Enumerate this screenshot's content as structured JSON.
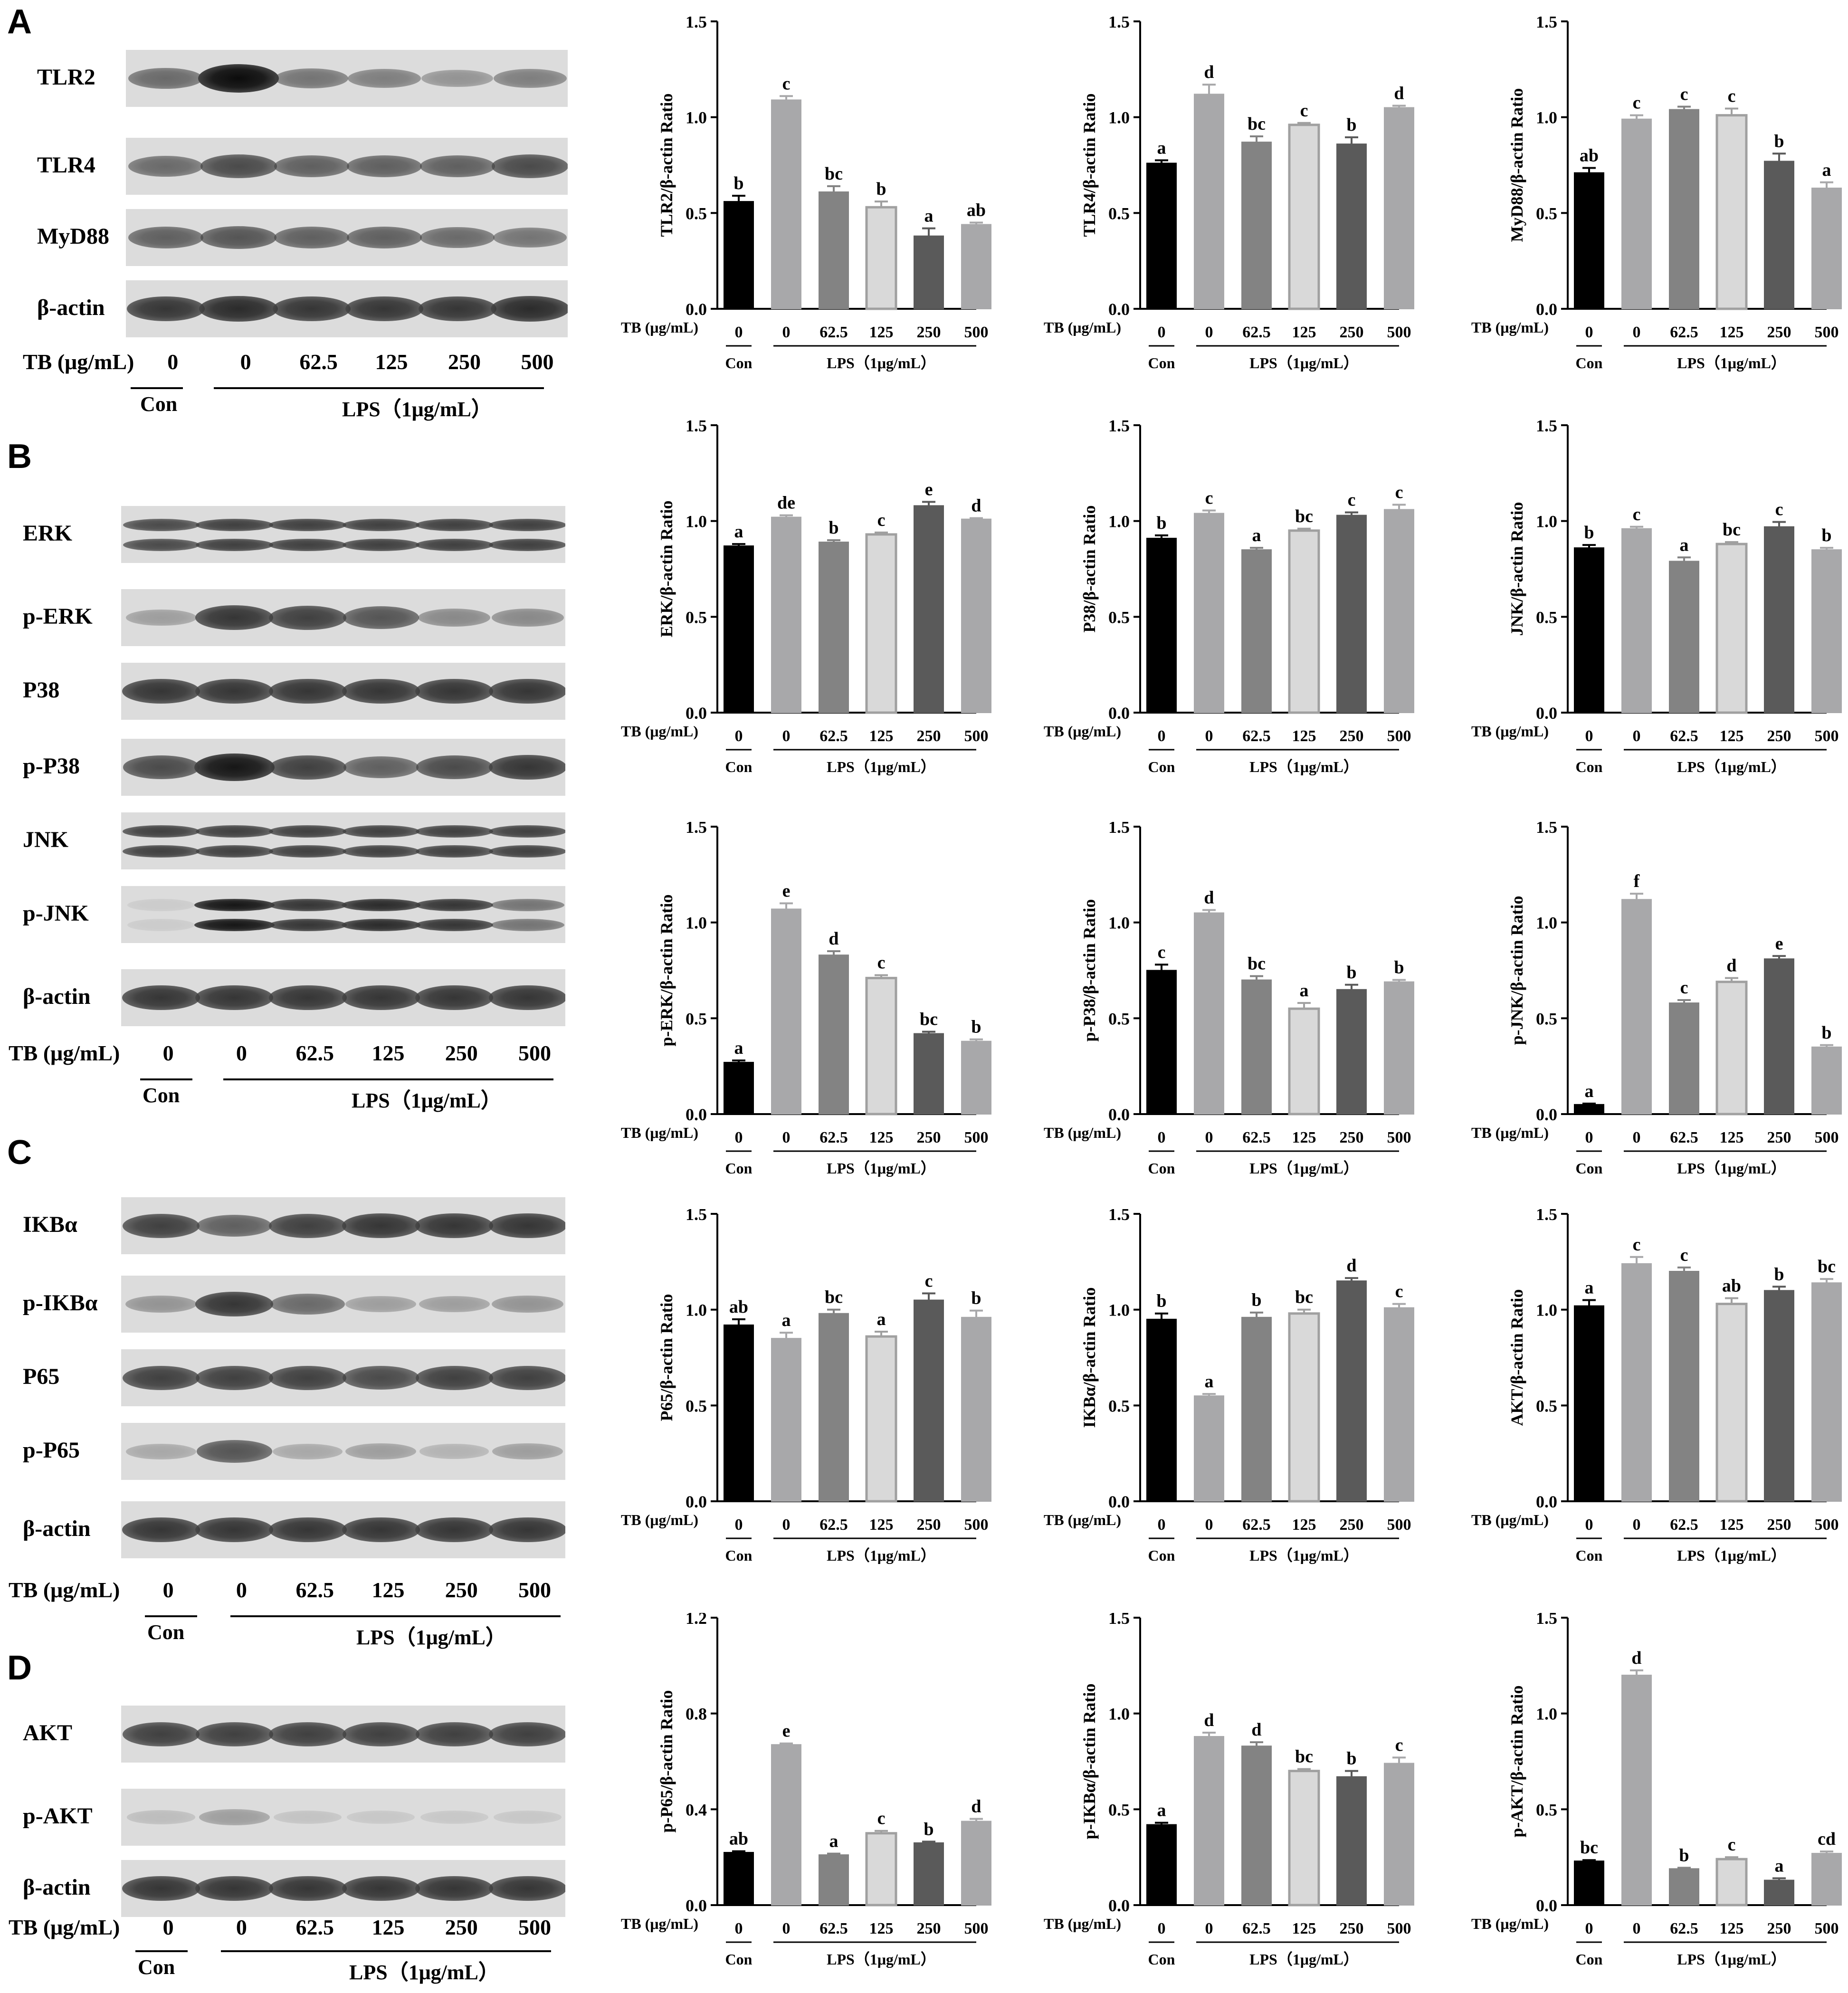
{
  "colors": {
    "bar_fills": [
      "#000000",
      "#a8a8aa",
      "#838383",
      "#d9d9d9",
      "#5a5a5a",
      "#a8a8aa"
    ],
    "bar_strokes": [
      "#000000",
      "#a8a8aa",
      "#838383",
      "#a0a0a0",
      "#5a5a5a",
      "#a8a8aa"
    ]
  },
  "panels": [
    {
      "letter": "A",
      "blots": [
        {
          "label": "TLR2",
          "intensity": [
            0.55,
            1.0,
            0.5,
            0.45,
            0.35,
            0.45
          ],
          "doublet": false
        },
        {
          "label": "TLR4",
          "intensity": [
            0.55,
            0.7,
            0.6,
            0.6,
            0.6,
            0.7
          ],
          "doublet": false
        },
        {
          "label": "MyD88",
          "intensity": [
            0.6,
            0.65,
            0.6,
            0.6,
            0.55,
            0.5
          ],
          "doublet": false
        },
        {
          "label": "β-actin",
          "intensity": [
            0.8,
            0.85,
            0.8,
            0.8,
            0.8,
            0.85
          ],
          "doublet": false
        }
      ],
      "tb_label": "TB (μg/mL)",
      "lanes": [
        "0",
        "0",
        "62.5",
        "125",
        "250",
        "500"
      ],
      "con_label": "Con",
      "lps_label": "LPS（1μg/mL）"
    },
    {
      "letter": "B",
      "blots": [
        {
          "label": "ERK",
          "intensity": [
            0.7,
            0.75,
            0.75,
            0.75,
            0.75,
            0.75
          ],
          "doublet": true
        },
        {
          "label": "p-ERK",
          "intensity": [
            0.3,
            0.8,
            0.75,
            0.65,
            0.4,
            0.4
          ],
          "doublet": false
        },
        {
          "label": "P38",
          "intensity": [
            0.8,
            0.8,
            0.8,
            0.8,
            0.8,
            0.8
          ],
          "doublet": false
        },
        {
          "label": "p-P38",
          "intensity": [
            0.7,
            0.95,
            0.75,
            0.6,
            0.7,
            0.8
          ],
          "doublet": false
        },
        {
          "label": "JNK",
          "intensity": [
            0.75,
            0.75,
            0.75,
            0.75,
            0.75,
            0.75
          ],
          "doublet": true
        },
        {
          "label": "p-JNK",
          "intensity": [
            0.05,
            0.95,
            0.8,
            0.85,
            0.8,
            0.5
          ],
          "doublet": true
        },
        {
          "label": "β-actin",
          "intensity": [
            0.8,
            0.8,
            0.8,
            0.8,
            0.8,
            0.8
          ],
          "doublet": false
        }
      ],
      "tb_label": "TB (μg/mL)",
      "lanes": [
        "0",
        "0",
        "62.5",
        "125",
        "250",
        "500"
      ],
      "con_label": "Con",
      "lps_label": "LPS（1μg/mL）"
    },
    {
      "letter": "C",
      "blots": [
        {
          "label": "IKBα",
          "intensity": [
            0.75,
            0.6,
            0.75,
            0.8,
            0.8,
            0.8
          ],
          "doublet": false
        },
        {
          "label": "p-IKBα",
          "intensity": [
            0.35,
            0.8,
            0.55,
            0.3,
            0.3,
            0.35
          ],
          "doublet": false
        },
        {
          "label": "P65",
          "intensity": [
            0.75,
            0.75,
            0.75,
            0.7,
            0.75,
            0.75
          ],
          "doublet": false
        },
        {
          "label": "p-P65",
          "intensity": [
            0.25,
            0.65,
            0.25,
            0.3,
            0.2,
            0.3
          ],
          "doublet": false
        },
        {
          "label": "β-actin",
          "intensity": [
            0.8,
            0.8,
            0.8,
            0.8,
            0.8,
            0.8
          ],
          "doublet": false
        }
      ],
      "tb_label": "TB (μg/mL)",
      "lanes": [
        "0",
        "0",
        "62.5",
        "125",
        "250",
        "500"
      ],
      "con_label": "Con",
      "lps_label": "LPS（1μg/mL）"
    },
    {
      "letter": "D",
      "blots": [
        {
          "label": "AKT",
          "intensity": [
            0.75,
            0.75,
            0.75,
            0.75,
            0.75,
            0.75
          ],
          "doublet": false
        },
        {
          "label": "p-AKT",
          "intensity": [
            0.15,
            0.3,
            0.12,
            0.1,
            0.1,
            0.1
          ],
          "doublet": false
        },
        {
          "label": "β-actin",
          "intensity": [
            0.8,
            0.8,
            0.8,
            0.8,
            0.8,
            0.8
          ],
          "doublet": false
        }
      ],
      "tb_label": "TB (μg/mL)",
      "lanes": [
        "0",
        "0",
        "62.5",
        "125",
        "250",
        "500"
      ],
      "con_label": "Con",
      "lps_label": "LPS（1μg/mL）"
    }
  ],
  "chart_data": [
    {
      "type": "bar",
      "ylabel": "TLR2/β-actin Ratio",
      "ylim": [
        0,
        1.5
      ],
      "yticks": [
        "0.0",
        "0.5",
        "1.0",
        "1.5"
      ],
      "categories": [
        "0",
        "0",
        "62.5",
        "125",
        "250",
        "500"
      ],
      "values": [
        0.56,
        1.09,
        0.61,
        0.53,
        0.38,
        0.44
      ],
      "errors": [
        0.03,
        0.02,
        0.03,
        0.03,
        0.04,
        0.01
      ],
      "letters": [
        "b",
        "c",
        "bc",
        "b",
        "a",
        "ab"
      ],
      "tb_label": "TB (μg/mL)",
      "con_label": "Con",
      "lps_label": "LPS（1μg/mL）"
    },
    {
      "type": "bar",
      "ylabel": "TLR4/β-actin Ratio",
      "ylim": [
        0,
        1.5
      ],
      "yticks": [
        "0.0",
        "0.5",
        "1.0",
        "1.5"
      ],
      "categories": [
        "0",
        "0",
        "62.5",
        "125",
        "250",
        "500"
      ],
      "values": [
        0.76,
        1.12,
        0.87,
        0.96,
        0.86,
        1.05
      ],
      "errors": [
        0.015,
        0.05,
        0.03,
        0.01,
        0.035,
        0.01
      ],
      "letters": [
        "a",
        "d",
        "bc",
        "c",
        "b",
        "d"
      ],
      "tb_label": "TB (μg/mL)",
      "con_label": "Con",
      "lps_label": "LPS（1μg/mL）"
    },
    {
      "type": "bar",
      "ylabel": "MyD88/β-actin Ratio",
      "ylim": [
        0,
        1.5
      ],
      "yticks": [
        "0.0",
        "0.5",
        "1.0",
        "1.5"
      ],
      "categories": [
        "0",
        "0",
        "62.5",
        "125",
        "250",
        "500"
      ],
      "values": [
        0.71,
        0.99,
        1.04,
        1.01,
        0.77,
        0.63
      ],
      "errors": [
        0.025,
        0.02,
        0.015,
        0.035,
        0.04,
        0.03
      ],
      "letters": [
        "ab",
        "c",
        "c",
        "c",
        "b",
        "a"
      ],
      "tb_label": "TB (μg/mL)",
      "con_label": "Con",
      "lps_label": "LPS（1μg/mL）"
    },
    {
      "type": "bar",
      "ylabel": "ERK/β-actin Ratio",
      "ylim": [
        0,
        1.5
      ],
      "yticks": [
        "0.0",
        "0.5",
        "1.0",
        "1.5"
      ],
      "categories": [
        "0",
        "0",
        "62.5",
        "125",
        "250",
        "500"
      ],
      "values": [
        0.87,
        1.02,
        0.89,
        0.93,
        1.08,
        1.01
      ],
      "errors": [
        0.01,
        0.01,
        0.01,
        0.01,
        0.02,
        0.005
      ],
      "letters": [
        "a",
        "de",
        "b",
        "c",
        "e",
        "d"
      ],
      "tb_label": "TB (μg/mL)",
      "con_label": "Con",
      "lps_label": "LPS（1μg/mL）"
    },
    {
      "type": "bar",
      "ylabel": "P38/β-actin Ratio",
      "ylim": [
        0,
        1.5
      ],
      "yticks": [
        "0.0",
        "0.5",
        "1.0",
        "1.5"
      ],
      "categories": [
        "0",
        "0",
        "62.5",
        "125",
        "250",
        "500"
      ],
      "values": [
        0.91,
        1.04,
        0.85,
        0.95,
        1.03,
        1.06
      ],
      "errors": [
        0.015,
        0.015,
        0.01,
        0.01,
        0.015,
        0.025
      ],
      "letters": [
        "b",
        "c",
        "a",
        "bc",
        "c",
        "c"
      ],
      "tb_label": "TB (μg/mL)",
      "con_label": "Con",
      "lps_label": "LPS（1μg/mL）"
    },
    {
      "type": "bar",
      "ylabel": "JNK/β-actin Ratio",
      "ylim": [
        0,
        1.5
      ],
      "yticks": [
        "0.0",
        "0.5",
        "1.0",
        "1.5"
      ],
      "categories": [
        "0",
        "0",
        "62.5",
        "125",
        "250",
        "500"
      ],
      "values": [
        0.86,
        0.96,
        0.79,
        0.88,
        0.97,
        0.85
      ],
      "errors": [
        0.015,
        0.01,
        0.02,
        0.01,
        0.025,
        0.01
      ],
      "letters": [
        "b",
        "c",
        "a",
        "bc",
        "c",
        "b"
      ],
      "tb_label": "TB (μg/mL)",
      "con_label": "Con",
      "lps_label": "LPS（1μg/mL）"
    },
    {
      "type": "bar",
      "ylabel": "p-ERK/β-actin Ratio",
      "ylim": [
        0,
        1.5
      ],
      "yticks": [
        "0.0",
        "0.5",
        "1.0",
        "1.5"
      ],
      "categories": [
        "0",
        "0",
        "62.5",
        "125",
        "250",
        "500"
      ],
      "values": [
        0.27,
        1.07,
        0.83,
        0.71,
        0.42,
        0.38
      ],
      "errors": [
        0.01,
        0.03,
        0.02,
        0.015,
        0.01,
        0.01
      ],
      "letters": [
        "a",
        "e",
        "d",
        "c",
        "bc",
        "b"
      ],
      "tb_label": "TB (μg/mL)",
      "con_label": "Con",
      "lps_label": "LPS（1μg/mL）"
    },
    {
      "type": "bar",
      "ylabel": "p-P38/β-actin Ratio",
      "ylim": [
        0,
        1.5
      ],
      "yticks": [
        "0.0",
        "0.5",
        "1.0",
        "1.5"
      ],
      "categories": [
        "0",
        "0",
        "62.5",
        "125",
        "250",
        "500"
      ],
      "values": [
        0.75,
        1.05,
        0.7,
        0.55,
        0.65,
        0.69
      ],
      "errors": [
        0.03,
        0.015,
        0.02,
        0.03,
        0.025,
        0.01
      ],
      "letters": [
        "c",
        "d",
        "bc",
        "a",
        "b",
        "b"
      ],
      "tb_label": "TB (μg/mL)",
      "con_label": "Con",
      "lps_label": "LPS（1μg/mL）"
    },
    {
      "type": "bar",
      "ylabel": "p-JNK/β-actin Ratio",
      "ylim": [
        0,
        1.5
      ],
      "yticks": [
        "0.0",
        "0.5",
        "1.0",
        "1.5"
      ],
      "categories": [
        "0",
        "0",
        "62.5",
        "125",
        "250",
        "500"
      ],
      "values": [
        0.05,
        1.12,
        0.58,
        0.69,
        0.81,
        0.35
      ],
      "errors": [
        0.005,
        0.03,
        0.015,
        0.02,
        0.015,
        0.01
      ],
      "letters": [
        "a",
        "f",
        "c",
        "d",
        "e",
        "b"
      ],
      "tb_label": "TB (μg/mL)",
      "con_label": "Con",
      "lps_label": "LPS（1μg/mL）"
    },
    {
      "type": "bar",
      "ylabel": "P65/β-actin Ratio",
      "ylim": [
        0,
        1.5
      ],
      "yticks": [
        "0.0",
        "0.5",
        "1.0",
        "1.5"
      ],
      "categories": [
        "0",
        "0",
        "62.5",
        "125",
        "250",
        "500"
      ],
      "values": [
        0.92,
        0.85,
        0.98,
        0.86,
        1.05,
        0.96
      ],
      "errors": [
        0.03,
        0.03,
        0.02,
        0.025,
        0.035,
        0.035
      ],
      "letters": [
        "ab",
        "a",
        "bc",
        "a",
        "c",
        "b"
      ],
      "tb_label": "TB (μg/mL)",
      "con_label": "Con",
      "lps_label": "LPS（1μg/mL）"
    },
    {
      "type": "bar",
      "ylabel": "IKBα/β-actin Ratio",
      "ylim": [
        0,
        1.5
      ],
      "yticks": [
        "0.0",
        "0.5",
        "1.0",
        "1.5"
      ],
      "categories": [
        "0",
        "0",
        "62.5",
        "125",
        "250",
        "500"
      ],
      "values": [
        0.95,
        0.55,
        0.96,
        0.98,
        1.15,
        1.01
      ],
      "errors": [
        0.03,
        0.01,
        0.025,
        0.02,
        0.015,
        0.02
      ],
      "letters": [
        "b",
        "a",
        "b",
        "bc",
        "d",
        "c"
      ],
      "tb_label": "TB (μg/mL)",
      "con_label": "Con",
      "lps_label": "LPS（1μg/mL）"
    },
    {
      "type": "bar",
      "ylabel": "AKT/β-actin Ratio",
      "ylim": [
        0,
        1.5
      ],
      "yticks": [
        "0.0",
        "0.5",
        "1.0",
        "1.5"
      ],
      "categories": [
        "0",
        "0",
        "62.5",
        "125",
        "250",
        "500"
      ],
      "values": [
        1.02,
        1.24,
        1.2,
        1.03,
        1.1,
        1.14
      ],
      "errors": [
        0.03,
        0.035,
        0.02,
        0.03,
        0.02,
        0.02
      ],
      "letters": [
        "a",
        "c",
        "c",
        "ab",
        "b",
        "bc"
      ],
      "tb_label": "TB (μg/mL)",
      "con_label": "Con",
      "lps_label": "LPS（1μg/mL）"
    },
    {
      "type": "bar",
      "ylabel": "p-P65/β-actin Ratio",
      "ylim": [
        0,
        1.2
      ],
      "yticks": [
        "0.0",
        "0.4",
        "0.8",
        "1.2"
      ],
      "categories": [
        "0",
        "0",
        "62.5",
        "125",
        "250",
        "500"
      ],
      "values": [
        0.22,
        0.67,
        0.21,
        0.3,
        0.26,
        0.35
      ],
      "errors": [
        0.005,
        0.005,
        0.005,
        0.01,
        0.005,
        0.01
      ],
      "letters": [
        "ab",
        "e",
        "a",
        "c",
        "b",
        "d"
      ],
      "tb_label": "TB (μg/mL)",
      "con_label": "Con",
      "lps_label": "LPS（1μg/mL）"
    },
    {
      "type": "bar",
      "ylabel": "p-IKBα/β-actin Ratio",
      "ylim": [
        0,
        1.5
      ],
      "yticks": [
        "0.0",
        "0.5",
        "1.0",
        "1.5"
      ],
      "categories": [
        "0",
        "0",
        "62.5",
        "125",
        "250",
        "500"
      ],
      "values": [
        0.42,
        0.88,
        0.83,
        0.7,
        0.67,
        0.74
      ],
      "errors": [
        0.01,
        0.02,
        0.02,
        0.01,
        0.03,
        0.03
      ],
      "letters": [
        "a",
        "d",
        "d",
        "bc",
        "b",
        "c"
      ],
      "tb_label": "TB (μg/mL)",
      "con_label": "Con",
      "lps_label": "LPS（1μg/mL）"
    },
    {
      "type": "bar",
      "ylabel": "p-AKT/β-actin Ratio",
      "ylim": [
        0,
        1.5
      ],
      "yticks": [
        "0.0",
        "0.5",
        "1.0",
        "1.5"
      ],
      "categories": [
        "0",
        "0",
        "62.5",
        "125",
        "250",
        "500"
      ],
      "values": [
        0.23,
        1.2,
        0.19,
        0.24,
        0.13,
        0.27
      ],
      "errors": [
        0.005,
        0.025,
        0.005,
        0.01,
        0.01,
        0.01
      ],
      "letters": [
        "bc",
        "d",
        "b",
        "c",
        "a",
        "cd"
      ],
      "tb_label": "TB (μg/mL)",
      "con_label": "Con",
      "lps_label": "LPS（1μg/mL）"
    }
  ]
}
